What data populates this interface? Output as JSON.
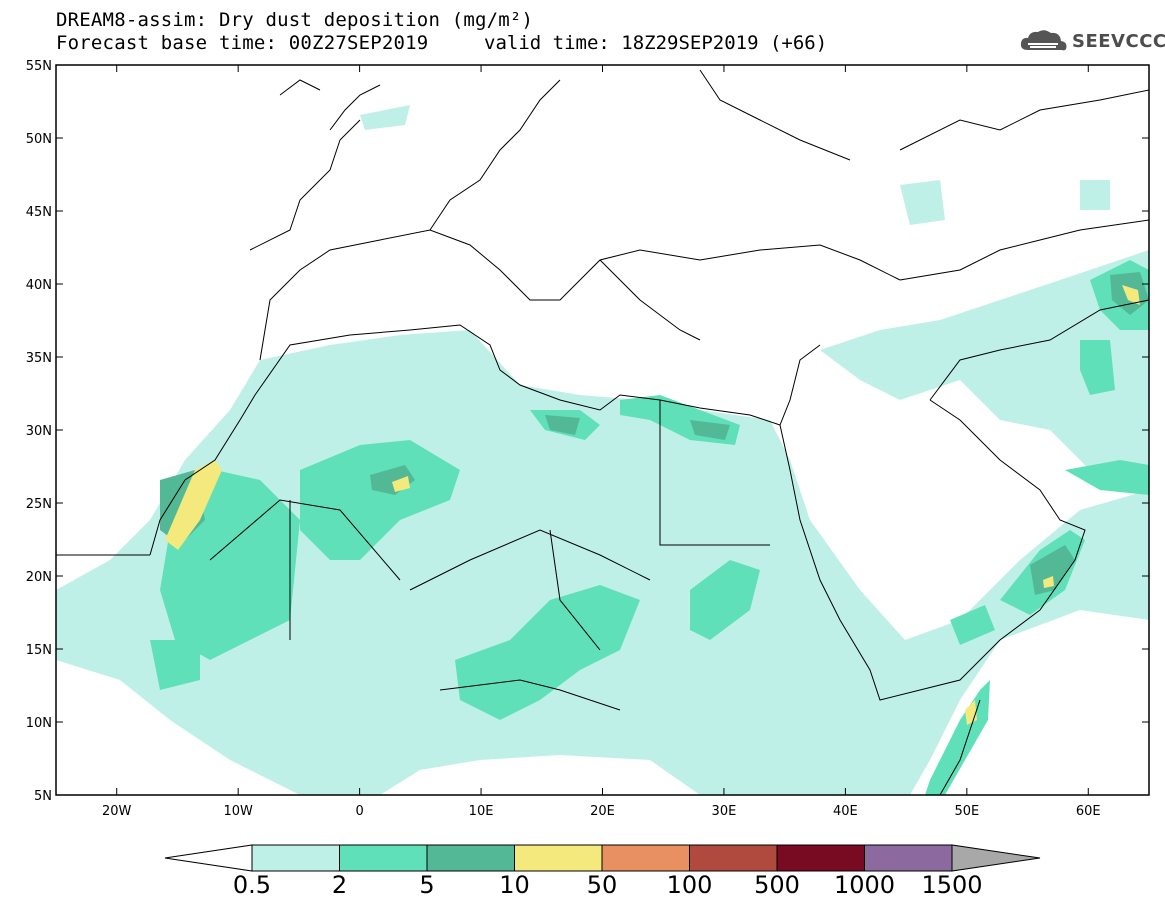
{
  "title": {
    "line1": "DREAM8-assim: Dry dust deposition (mg/m²)",
    "line2_left": "Forecast base time: 00Z27SEP2019",
    "line2_right": "valid time: 18Z29SEP2019 (+66)"
  },
  "logo": {
    "text": "SEEVCCC",
    "icon": "cloud-logo-icon"
  },
  "map": {
    "lon_range": [
      -25,
      65
    ],
    "lat_range": [
      5,
      55
    ],
    "lat_labels": [
      "55N",
      "50N",
      "45N",
      "40N",
      "35N",
      "30N",
      "25N",
      "20N",
      "15N",
      "10N",
      "5N"
    ],
    "lon_labels": [
      "20W",
      "10W",
      "0",
      "10E",
      "20E",
      "30E",
      "40E",
      "50E",
      "60E"
    ]
  },
  "colorbar": {
    "labels": [
      "0.5",
      "2",
      "5",
      "10",
      "50",
      "100",
      "500",
      "1000",
      "1500"
    ],
    "colors": [
      "#bff0e8",
      "#5fe0b8",
      "#52b896",
      "#f3e97d",
      "#e89062",
      "#b04a3e",
      "#780a22",
      "#8c6aa0",
      "#a8a8a8"
    ]
  }
}
